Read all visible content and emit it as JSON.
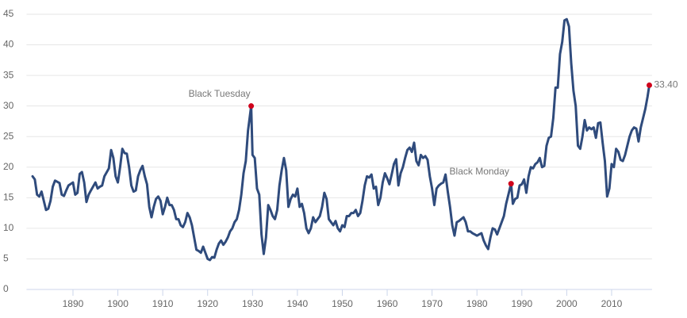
{
  "chart_data": {
    "type": "line",
    "x": [
      1881,
      1881.5,
      1882,
      1882.5,
      1883,
      1883.5,
      1884,
      1884.5,
      1885,
      1885.5,
      1886,
      1887,
      1887.5,
      1888,
      1888.5,
      1889,
      1890,
      1890.5,
      1891,
      1891.5,
      1892,
      1892.5,
      1893,
      1893.5,
      1894,
      1895,
      1895.5,
      1896,
      1896.5,
      1897,
      1898,
      1898.5,
      1899,
      1899.5,
      1900,
      1900.5,
      1901,
      1901.5,
      1902,
      1902.5,
      1903,
      1903.5,
      1904,
      1904.5,
      1905,
      1905.5,
      1906,
      1906.5,
      1907,
      1907.5,
      1908,
      1908.5,
      1909,
      1909.5,
      1910,
      1910.5,
      1911,
      1911.5,
      1912,
      1912.5,
      1913,
      1913.5,
      1914,
      1914.5,
      1915,
      1915.5,
      1916,
      1916.5,
      1917,
      1917.5,
      1918,
      1918.5,
      1919,
      1919.5,
      1920,
      1920.5,
      1921,
      1921.5,
      1922,
      1922.5,
      1923,
      1923.5,
      1924,
      1924.5,
      1925,
      1925.5,
      1926,
      1926.5,
      1927,
      1927.5,
      1928,
      1928.5,
      1929,
      1929.7,
      1930,
      1930.5,
      1931,
      1931.5,
      1932,
      1932.5,
      1933,
      1933.5,
      1934,
      1934.5,
      1935,
      1935.5,
      1936,
      1936.5,
      1937,
      1937.5,
      1938,
      1938.5,
      1939,
      1939.5,
      1940,
      1940.5,
      1941,
      1941.5,
      1942,
      1942.5,
      1943,
      1943.5,
      1944,
      1944.5,
      1945,
      1945.5,
      1946,
      1946.5,
      1947,
      1947.5,
      1948,
      1948.5,
      1949,
      1949.5,
      1950,
      1950.5,
      1951,
      1951.5,
      1952,
      1952.5,
      1953,
      1953.5,
      1954,
      1954.5,
      1955,
      1955.5,
      1956,
      1956.5,
      1957,
      1957.5,
      1958,
      1958.5,
      1959,
      1959.5,
      1960,
      1960.5,
      1961,
      1961.5,
      1962,
      1962.5,
      1963,
      1963.5,
      1964,
      1964.5,
      1965,
      1965.5,
      1966,
      1966.5,
      1967,
      1967.5,
      1968,
      1968.5,
      1969,
      1969.5,
      1970,
      1970.5,
      1971,
      1971.5,
      1972,
      1972.5,
      1973,
      1973.5,
      1974,
      1974.5,
      1975,
      1975.5,
      1976,
      1976.5,
      1977,
      1977.5,
      1978,
      1978.5,
      1979,
      1979.5,
      1980,
      1980.5,
      1981,
      1981.5,
      1982,
      1982.5,
      1983,
      1983.5,
      1984,
      1984.5,
      1985,
      1985.5,
      1986,
      1986.5,
      1987,
      1987.6,
      1988,
      1988.5,
      1989,
      1989.5,
      1990,
      1990.5,
      1991,
      1991.5,
      1992,
      1992.5,
      1993,
      1993.5,
      1994,
      1994.5,
      1995,
      1995.5,
      1996,
      1996.5,
      1997,
      1997.5,
      1998,
      1998.5,
      1999,
      1999.5,
      2000,
      2000.5,
      2001,
      2001.5,
      2002,
      2002.5,
      2003,
      2003.5,
      2004,
      2004.5,
      2005,
      2005.5,
      2006,
      2006.5,
      2007,
      2007.5,
      2008,
      2008.5,
      2009,
      2009.5,
      2010,
      2010.5,
      2011,
      2011.5,
      2012,
      2012.5,
      2013,
      2013.5,
      2014,
      2014.5,
      2015,
      2015.5,
      2016,
      2016.5,
      2017,
      2017.5,
      2018,
      2018.4
    ],
    "values": [
      18.5,
      18.0,
      15.5,
      15.2,
      16,
      14.5,
      13.0,
      13.2,
      14.5,
      16.8,
      17.8,
      17.4,
      15.5,
      15.3,
      16.2,
      17.0,
      17.5,
      15.5,
      15.8,
      18.9,
      19.2,
      17.5,
      14.3,
      15.5,
      16.2,
      17.5,
      16.5,
      16.8,
      17,
      18.5,
      19.8,
      22.8,
      21.5,
      18.5,
      17.5,
      20,
      23,
      22.3,
      22.2,
      20,
      17,
      16,
      16.2,
      18.5,
      19.5,
      20.2,
      18.5,
      17.2,
      13.5,
      11.8,
      13.5,
      14.8,
      15.2,
      14.5,
      12.3,
      13.5,
      15,
      13.8,
      13.8,
      13,
      11.5,
      11.5,
      10.5,
      10.2,
      11,
      12.5,
      11.8,
      10.5,
      8.5,
      6.5,
      6.3,
      6.0,
      7.0,
      6.0,
      5.0,
      4.8,
      5.3,
      5.2,
      6.5,
      7.5,
      8.0,
      7.3,
      7.8,
      8.5,
      9.5,
      10,
      11,
      11.5,
      13,
      15.5,
      19,
      21,
      26,
      30,
      22,
      21.5,
      16.5,
      15.5,
      9,
      5.8,
      8.5,
      13.8,
      13,
      12,
      11.5,
      13,
      17,
      19.5,
      21.5,
      19.5,
      13.5,
      14.8,
      15.5,
      15.2,
      16.5,
      13.5,
      14,
      12.5,
      10,
      9.2,
      10,
      11.8,
      11,
      11.5,
      12,
      13.5,
      15.8,
      14.8,
      11.5,
      11,
      10.5,
      11.2,
      10,
      9.5,
      10.5,
      10.2,
      12,
      12,
      12.5,
      12.5,
      13,
      12,
      12.5,
      14.5,
      17,
      18.5,
      18.3,
      18.8,
      16.5,
      16.8,
      13.8,
      15,
      17.5,
      19,
      18.2,
      17.2,
      18.8,
      20.5,
      21.3,
      17,
      19,
      20,
      21.5,
      22.8,
      23.2,
      22.5,
      24,
      21,
      20.3,
      22,
      21.5,
      21.8,
      21.2,
      18.5,
      16.5,
      13.8,
      16.5,
      17,
      17.3,
      17.5,
      18.8,
      16,
      13.5,
      10.5,
      8.8,
      11,
      11.2,
      11.5,
      11.8,
      11,
      9.5,
      9.5,
      9.2,
      9,
      8.8,
      9,
      9.2,
      8,
      7.2,
      6.6,
      8.5,
      10,
      9.8,
      9,
      10,
      11,
      12,
      14,
      15.5,
      17.3,
      14,
      14.8,
      15,
      17,
      17.2,
      18,
      15.8,
      18.5,
      20,
      19.8,
      20.5,
      20.8,
      21.5,
      20,
      20.2,
      23.5,
      24.8,
      25,
      28,
      33,
      33,
      38.5,
      40.5,
      44,
      44.2,
      43,
      37,
      32.5,
      30,
      23.5,
      23,
      25,
      27.7,
      26,
      26.5,
      26.2,
      26.5,
      24.8,
      27.2,
      27.3,
      24,
      21,
      15.2,
      16.5,
      20.5,
      20,
      23,
      22.5,
      21.2,
      21,
      22,
      23.5,
      25,
      26,
      26.5,
      26.3,
      24.2,
      26.5,
      28,
      29.5,
      31.5,
      33.4
    ],
    "color": "#2f4b7c",
    "xlim": [
      1880,
      2019
    ],
    "xticks": [
      1890,
      1900,
      1910,
      1920,
      1930,
      1940,
      1950,
      1960,
      1970,
      1980,
      1990,
      2000,
      2010
    ],
    "ylim": [
      0,
      45
    ],
    "yticks": [
      0,
      5,
      10,
      15,
      20,
      25,
      30,
      35,
      40,
      45
    ],
    "grid": true,
    "annotations": [
      {
        "label": "Black Tuesday",
        "x": 1929.7,
        "y": 30,
        "color": "#d0021b"
      },
      {
        "label": "Black Monday",
        "x": 1987.6,
        "y": 17.3,
        "color": "#d0021b"
      },
      {
        "label": "33.40",
        "x": 2018.4,
        "y": 33.4,
        "color": "#d0021b"
      }
    ]
  }
}
